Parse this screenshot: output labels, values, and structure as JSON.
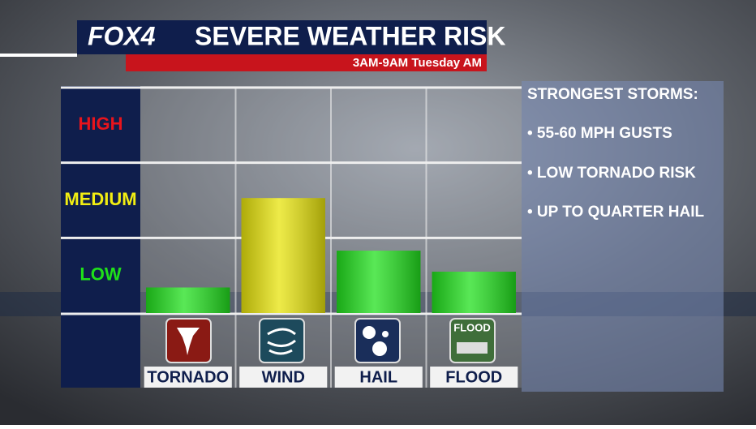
{
  "header": {
    "logo": "FOX4",
    "title": "SEVERE WEATHER RISK",
    "subtitle": "3AM-9AM Tuesday AM"
  },
  "chart_data": {
    "type": "bar",
    "categories": [
      "TORNADO",
      "WIND",
      "HAIL",
      "FLOOD"
    ],
    "values": [
      0.34,
      1.53,
      0.83,
      0.55
    ],
    "colors": [
      "#22e01e",
      "#e8e40c",
      "#22e01e",
      "#22e01e"
    ],
    "ylim": [
      0,
      3
    ],
    "yticks": [
      {
        "value": 0.5,
        "label": "LOW"
      },
      {
        "value": 1.5,
        "label": "MEDIUM"
      },
      {
        "value": 2.5,
        "label": "HIGH"
      }
    ],
    "ytick_colors": [
      "#1fe01a",
      "#f2ee12",
      "#e8141c"
    ],
    "grid": true
  },
  "flood_icon_label": "FLOOD",
  "side_panel": {
    "heading": "STRONGEST STORMS:",
    "items": [
      "• 55-60 MPH GUSTS",
      "• LOW TORNADO RISK",
      "• UP TO QUARTER HAIL"
    ]
  }
}
